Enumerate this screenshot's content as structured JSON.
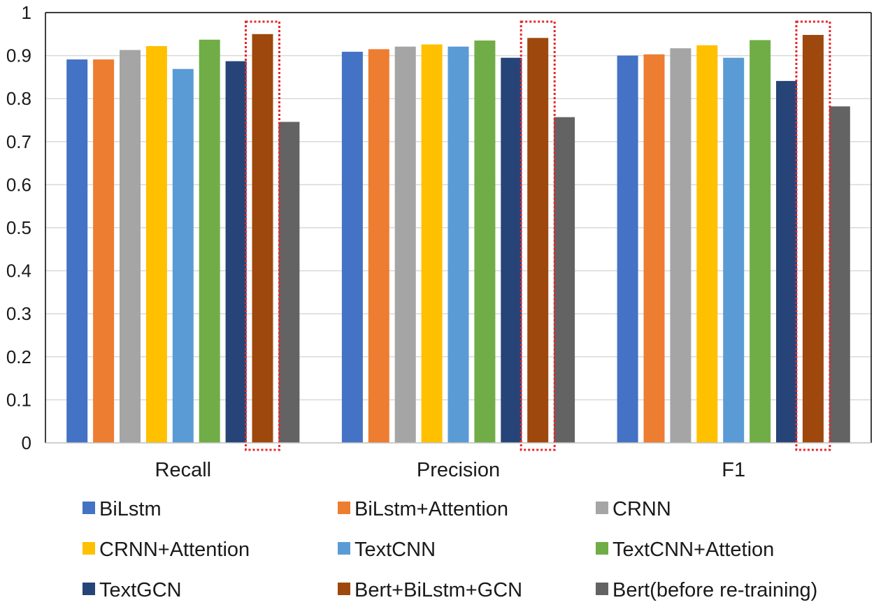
{
  "chart_data": {
    "type": "bar",
    "title": "",
    "xlabel": "",
    "ylabel": "",
    "ylim": [
      0,
      1
    ],
    "yticks": [
      "0",
      "0.1",
      "0.2",
      "0.3",
      "0.4",
      "0.5",
      "0.6",
      "0.7",
      "0.8",
      "0.9",
      "1"
    ],
    "categories": [
      "Recall",
      "Precision",
      "F1"
    ],
    "grid": true,
    "legend_position": "bottom",
    "highlighted_series": "Bert+BiLstm+GCN",
    "series": [
      {
        "name": "BiLstm",
        "color": "#4472C4",
        "values": [
          0.891,
          0.909,
          0.9
        ]
      },
      {
        "name": "BiLstm+Attention",
        "color": "#ED7D31",
        "values": [
          0.891,
          0.915,
          0.903
        ]
      },
      {
        "name": "CRNN",
        "color": "#A5A5A5",
        "values": [
          0.913,
          0.921,
          0.917
        ]
      },
      {
        "name": "CRNN+Attention",
        "color": "#FFC000",
        "values": [
          0.922,
          0.926,
          0.924
        ]
      },
      {
        "name": "TextCNN",
        "color": "#5B9BD5",
        "values": [
          0.869,
          0.921,
          0.895
        ]
      },
      {
        "name": "TextCNN+Attetion",
        "color": "#70AD47",
        "values": [
          0.937,
          0.935,
          0.936
        ]
      },
      {
        "name": "TextGCN",
        "color": "#264478",
        "values": [
          0.887,
          0.895,
          0.841
        ]
      },
      {
        "name": "Bert+BiLstm+GCN",
        "color": "#9E480E",
        "values": [
          0.95,
          0.941,
          0.948
        ]
      },
      {
        "name": "Bert(before re-training)",
        "color": "#636363",
        "values": [
          0.746,
          0.757,
          0.782
        ]
      }
    ]
  }
}
